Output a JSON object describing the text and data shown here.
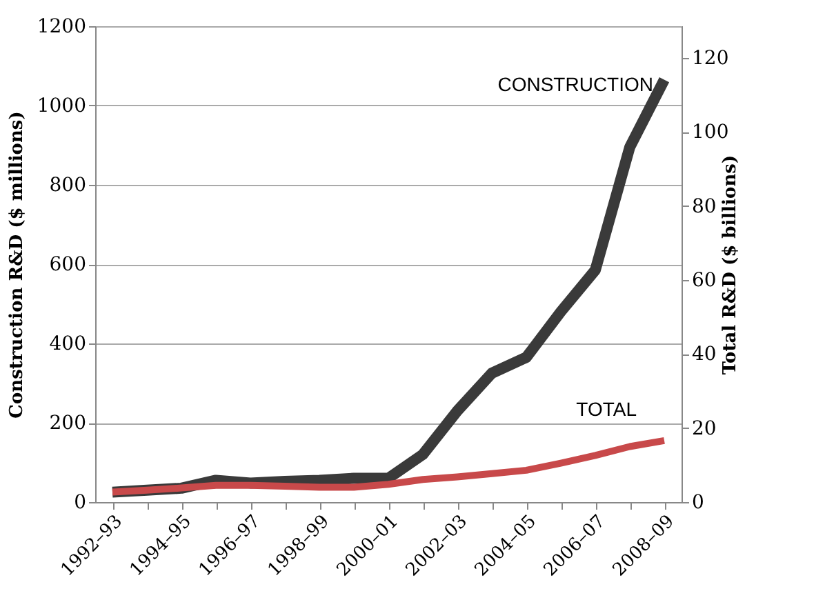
{
  "chart_data": {
    "type": "line",
    "categories": [
      "1992–93",
      null,
      "1994–95",
      null,
      "1996–97",
      null,
      "1998–99",
      null,
      "2000–01",
      null,
      "2002–03",
      null,
      "2004–05",
      null,
      "2006–07",
      null,
      "2008–09"
    ],
    "series": [
      {
        "name": "CONSTRUCTION",
        "color": "#3a3a3a",
        "values": [
          25,
          30,
          35,
          55,
          48,
          52,
          55,
          60,
          60,
          120,
          230,
          325,
          365,
          480,
          585,
          895,
          1065
        ]
      },
      {
        "name": "TOTAL",
        "color": "#c8494a",
        "axis": "y2",
        "values": [
          2.7,
          3.2,
          3.8,
          4.5,
          4.5,
          4.3,
          4.0,
          4.0,
          4.8,
          6.1,
          6.8,
          7.7,
          8.6,
          10.5,
          12.6,
          15.0,
          16.6
        ]
      }
    ],
    "ylabel": "Construction R&D ($ millions)",
    "y2label": "Total R&D ($ billions)",
    "ylim": [
      0,
      1200
    ],
    "yticks": [
      0,
      200,
      400,
      600,
      800,
      1000,
      1200
    ],
    "y2lim": [
      0,
      128.6
    ],
    "y2ticks": [
      0,
      20,
      40,
      60,
      80,
      100,
      120
    ],
    "grid": "y",
    "legend": false,
    "marker": "none",
    "line_style": "solid"
  }
}
